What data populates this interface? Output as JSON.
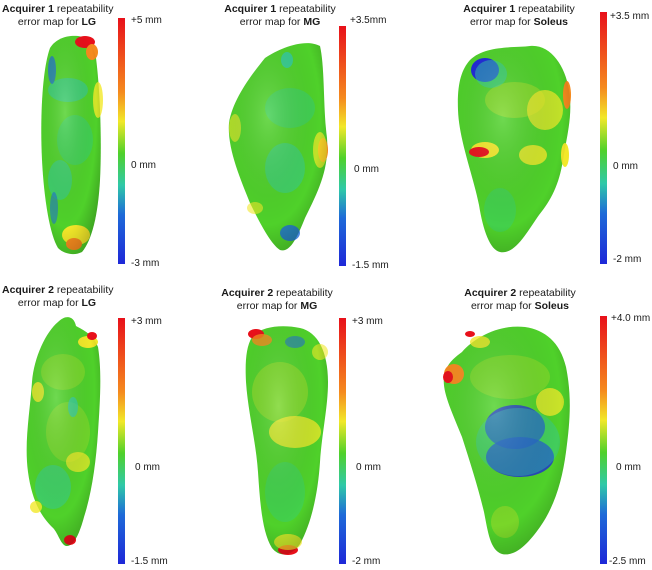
{
  "colors": {
    "red": "#e8101a",
    "orange": "#f58a1e",
    "yellow": "#f2e829",
    "green": "#4fd12a",
    "cyan": "#2fc9a8",
    "blue": "#1e28d8"
  },
  "panels": [
    {
      "id": "a1-lg",
      "title_prefix": "Acquirer",
      "acquirer": "1",
      "title_suffix": "repeatability",
      "title_line2": "error map for",
      "muscle": "LG",
      "max_label": "+5 mm",
      "zero_label": "0 mm",
      "min_label": "-3 mm"
    },
    {
      "id": "a1-mg",
      "title_prefix": "Acquirer",
      "acquirer": "1",
      "title_suffix": "repeatability",
      "title_line2": "error map for",
      "muscle": "MG",
      "max_label": "+3.5mm",
      "zero_label": "0 mm",
      "min_label": "-1.5 mm"
    },
    {
      "id": "a1-soleus",
      "title_prefix": "Acquirer",
      "acquirer": "1",
      "title_suffix": "repeatability",
      "title_line2": "error map for",
      "muscle": "Soleus",
      "max_label": "+3.5 mm",
      "zero_label": "0 mm",
      "min_label": "-2 mm"
    },
    {
      "id": "a2-lg",
      "title_prefix": "Acquirer",
      "acquirer": "2",
      "title_suffix": "repeatability",
      "title_line2": "error map for",
      "muscle": "LG",
      "max_label": "+3 mm",
      "zero_label": "0 mm",
      "min_label": "-1.5 mm"
    },
    {
      "id": "a2-mg",
      "title_prefix": "Acquirer",
      "acquirer": "2",
      "title_suffix": "repeatability",
      "title_line2": "error map for",
      "muscle": "MG",
      "max_label": "+3 mm",
      "zero_label": "0 mm",
      "min_label": "-2 mm"
    },
    {
      "id": "a2-soleus",
      "title_prefix": "Acquirer",
      "acquirer": "2",
      "title_suffix": "repeatability",
      "title_line2": "error map for",
      "muscle": "Soleus",
      "max_label": "+4.0 mm",
      "zero_label": "0 mm",
      "min_label": "-2.5 mm"
    }
  ]
}
